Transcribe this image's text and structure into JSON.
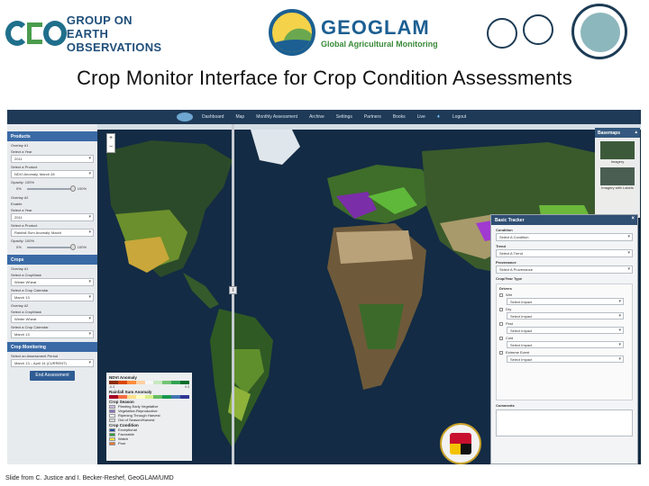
{
  "header": {
    "geo_line1": "GROUP ON",
    "geo_line2": "EARTH OBSERVATIONS",
    "geoglam_title": "GEOGLAM",
    "geoglam_subtitle": "Global Agricultural Monitoring"
  },
  "title": "Crop Monitor Interface for Crop Condition Assessments",
  "app": {
    "nav": [
      "Dashboard",
      "Map",
      "Monthly Assessment",
      "Archive",
      "Settings",
      "Partners",
      "Books",
      "Live",
      "Logout"
    ],
    "left_panel": {
      "products_header": "Products",
      "overlay1_label": "Overlay #1",
      "select_year_label": "Select a Year",
      "year1": "2011",
      "select_product_label": "Select a Product",
      "product1": "NDVI Anomaly, March 28",
      "opacity1_label": "Opacity: 100%",
      "min": "0%",
      "max": "100%",
      "overlay2_label": "Overlay #2",
      "enable_label": "Enable",
      "select_year_label2": "Select a Year",
      "year2": "2011",
      "select_product_label2": "Select a Product",
      "product2": "Rainfall Sum Anomaly, March",
      "opacity2_label": "Opacity: 100%",
      "crops_header": "Crops",
      "crop_overlay1": "Overlay #1",
      "crop_select1": "Select a CropMask",
      "crop1": "Winter Wheat",
      "crop_cal1": "Select a Crop Calendar",
      "cal1": "March 13",
      "crop_overlay2": "Overlay #2",
      "crop_select2": "Select a CropMask",
      "crop2": "Winter Wheat",
      "crop_cal2": "Select a Crop Calendar",
      "cal2": "March 13",
      "monitoring_header": "Crop Monitoring",
      "period_label": "Select an Assessment Period",
      "period": "March 13 – April 14 (CURRENT)",
      "end_button": "End Assessment"
    },
    "legend": {
      "ndvi_title": "NDVI Anomaly",
      "ndvi_ramp": [
        "#8c2d04",
        "#d94801",
        "#fd8d3c",
        "#fdd0a2",
        "#f7f7f7",
        "#c7e9c0",
        "#74c476",
        "#31a354",
        "#006d2c"
      ],
      "ndvi_low": "-0.3",
      "ndvi_high": "0.3",
      "rain_title": "Rainfall Sum Anomaly",
      "rain_ramp": [
        "#a50026",
        "#f46d43",
        "#fee08b",
        "#ffffbf",
        "#d9ef8b",
        "#66bd63",
        "#1a9850",
        "#4575b4",
        "#313695"
      ],
      "season_title": "Crop Season",
      "season_items": [
        {
          "label": "Planting Early Vegetative",
          "color": "#c9b6e4"
        },
        {
          "label": "Vegetative-Reproductive",
          "color": "#8a6fc1"
        },
        {
          "label": "Ripening Through Harvest",
          "color": "#f5f5f5"
        },
        {
          "label": "Out of Season/Harvest",
          "color": "#d9d9d9"
        }
      ],
      "condition_title": "Crop Condition",
      "condition_items": [
        {
          "label": "Exceptional",
          "color": "#1f4fa3"
        },
        {
          "label": "Favorable",
          "color": "#2e9e3c"
        },
        {
          "label": "Watch",
          "color": "#f2e33a"
        },
        {
          "label": "Poor",
          "color": "#e8772e"
        }
      ]
    },
    "basemaps": {
      "header": "Basemaps",
      "item1": "Imagery",
      "item2": "Imagery with Labels"
    },
    "right_panel": {
      "header": "Basic Tracker",
      "condition_label": "Condition",
      "condition_value": "Select A Condition",
      "trend_label": "Trend",
      "trend_value": "Select A Trend",
      "provenance_label": "Provenance",
      "provenance_value": "Select A Provenance",
      "crop_label": "Crop/Year Type",
      "drivers_label": "Drivers",
      "drivers": [
        {
          "label": "Wet",
          "value": "Select Impact"
        },
        {
          "label": "Dry",
          "value": "Select Impact"
        },
        {
          "label": "Pest",
          "value": "Select Impact"
        },
        {
          "label": "Cold",
          "value": "Select Impact"
        },
        {
          "label": "Extreme Event",
          "value": "Select Impact"
        }
      ],
      "comments_label": "Comments"
    }
  },
  "credit": "Slide from C. Justice and I. Becker-Reshef, GeoGLAM/UMD"
}
